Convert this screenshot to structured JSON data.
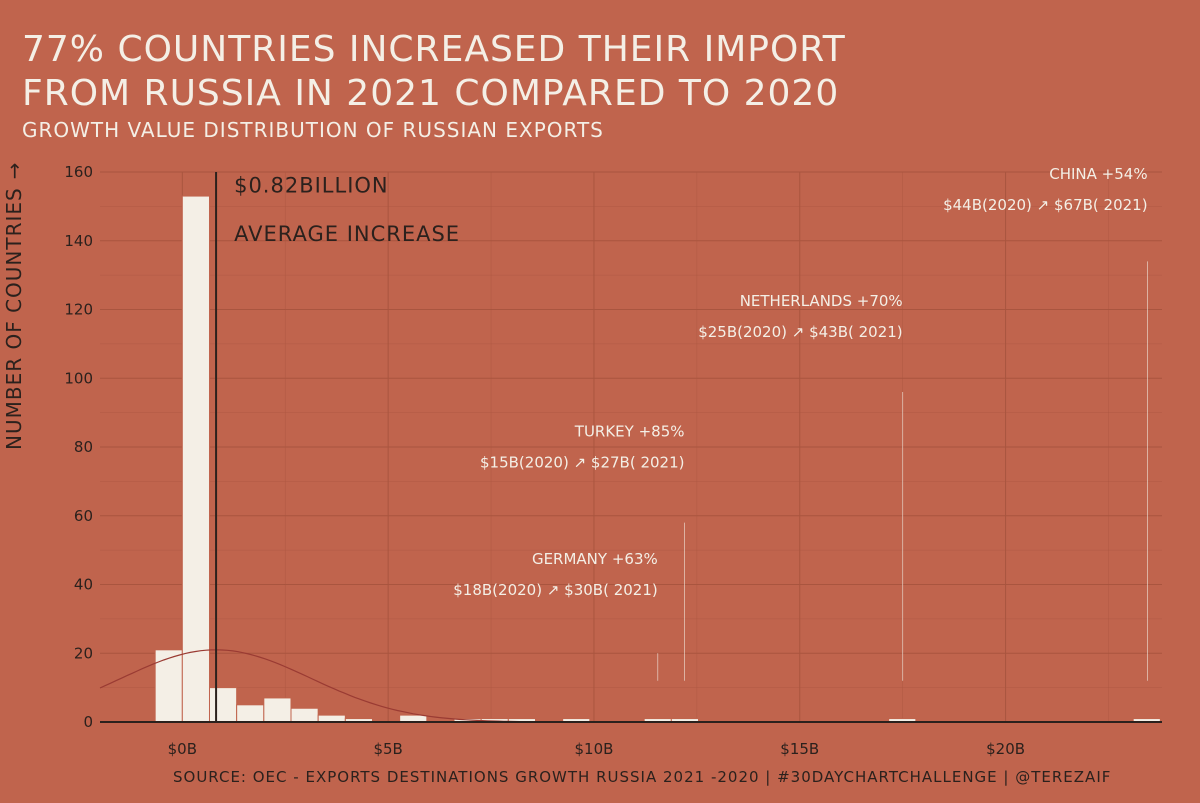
{
  "header": {
    "title_line1": "77% COUNTRIES INCREASED THEIR IMPORT",
    "title_line2": "FROM RUSSIA IN 2021 COMPARED TO 2020",
    "subtitle": "GROWTH VALUE DISTRIBUTION OF RUSSIAN EXPORTS"
  },
  "footer": {
    "source": "SOURCE: OEC - EXPORTS DESTINATIONS GROWTH RUSSIA 2021 -2020 | #30DAYCHARTCHALLENGE | @TEREZAIF"
  },
  "colors": {
    "background": "#c0644d",
    "bar": "#f4efe6",
    "bar_stroke": "#c0644d",
    "text_dark": "#2b211d",
    "text_light": "#f4efe6",
    "grid": "#a9553f",
    "density_curve": "#9a3b33"
  },
  "chart_data": {
    "type": "bar",
    "ylabel": "NUMBER OF COUNTRIES",
    "ylabel_arrow": "→",
    "xlim": [
      -2,
      23.8
    ],
    "ylim": [
      0,
      160
    ],
    "grid": true,
    "x_ticks": [
      {
        "value": 0,
        "label": "$0B"
      },
      {
        "value": 5,
        "label": "$5B"
      },
      {
        "value": 10,
        "label": "$10B"
      },
      {
        "value": 15,
        "label": "$15B"
      },
      {
        "value": 20,
        "label": "$20B"
      }
    ],
    "y_ticks": [
      0,
      20,
      40,
      60,
      80,
      100,
      120,
      140,
      160
    ],
    "bin_width": 0.66,
    "bins": [
      {
        "x0": -0.66,
        "count": 21
      },
      {
        "x0": 0.0,
        "count": 153
      },
      {
        "x0": 0.66,
        "count": 10
      },
      {
        "x0": 1.32,
        "count": 5
      },
      {
        "x0": 1.98,
        "count": 7
      },
      {
        "x0": 2.64,
        "count": 4
      },
      {
        "x0": 3.3,
        "count": 2
      },
      {
        "x0": 3.96,
        "count": 1
      },
      {
        "x0": 5.28,
        "count": 2
      },
      {
        "x0": 6.6,
        "count": 1
      },
      {
        "x0": 7.26,
        "count": 1
      },
      {
        "x0": 7.92,
        "count": 1
      },
      {
        "x0": 9.24,
        "count": 1
      },
      {
        "x0": 11.22,
        "count": 1
      },
      {
        "x0": 11.88,
        "count": 1
      },
      {
        "x0": 17.16,
        "count": 1
      },
      {
        "x0": 23.1,
        "count": 1
      }
    ],
    "average": {
      "value": 0.82,
      "label_line1": "$0.82BILLION",
      "label_line2": "AVERAGE INCREASE"
    },
    "density_curve": {
      "mean": 0.82,
      "sd": 2.3,
      "peak": 21
    },
    "annotations": [
      {
        "name": "germany",
        "line1": "GERMANY +63%",
        "line2": "$18B(2020) ↗ $30B( 2021)",
        "x": 11.55,
        "y_top": 20,
        "y_bottom": 12,
        "text_y": 46
      },
      {
        "name": "turkey",
        "line1": "TURKEY +85%",
        "line2": "$15B(2020) ↗ $27B( 2021)",
        "x": 12.2,
        "y_top": 58,
        "y_bottom": 12,
        "text_y": 83
      },
      {
        "name": "netherlands",
        "line1": "NETHERLANDS +70%",
        "line2": "$25B(2020) ↗ $43B( 2021)",
        "x": 17.5,
        "y_top": 96,
        "y_bottom": 12,
        "text_y": 121
      },
      {
        "name": "china",
        "line1": "CHINA +54%",
        "line2": "$44B(2020) ↗ $67B( 2021)",
        "x": 23.45,
        "y_top": 134,
        "y_bottom": 12,
        "text_y": 158
      }
    ]
  }
}
